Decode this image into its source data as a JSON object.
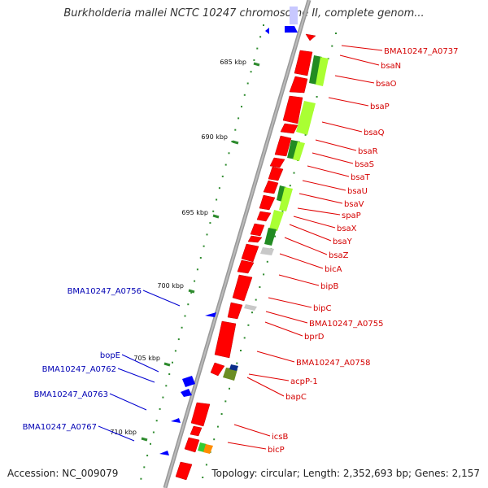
{
  "title": "Burkholderia mallei NCTC 10247 chromosome II, complete genom...",
  "footer": {
    "accession": "Accession: NC_009079",
    "topology": "Topology: circular; Length: 2,352,693 bp; Genes: 2,157"
  },
  "kbp_marks": [
    "685 kbp",
    "690 kbp",
    "695 kbp",
    "700 kbp",
    "705 kbp",
    "710 kbp"
  ],
  "right_labels": [
    "BMA10247_A0737",
    "bsaN",
    "bsaO",
    "bsaP",
    "bsaQ",
    "bsaR",
    "bsaS",
    "bsaT",
    "bsaU",
    "bsaV",
    "spaP",
    "bsaX",
    "bsaY",
    "bsaZ",
    "bicA",
    "bipB",
    "bipC",
    "BMA10247_A0755",
    "bprD",
    "BMA10247_A0758",
    "acpP-1",
    "bapC",
    "icsB",
    "bicP"
  ],
  "left_labels": [
    "BMA10247_A0756",
    "bopE",
    "BMA10247_A0762",
    "BMA10247_A0763",
    "BMA10247_A0767"
  ],
  "colors": {
    "forward_gene": "#ff0000",
    "reverse_gene": "#0000ff",
    "label_forward": "#d40000",
    "label_reverse": "#0000b4",
    "feature_light_green": "#aaff33",
    "feature_dark_green": "#228b22",
    "feature_gray": "#c8c8c8",
    "feature_orange": "#ff8c00",
    "backbone": "#888888",
    "tick": "#2e8b2e"
  }
}
